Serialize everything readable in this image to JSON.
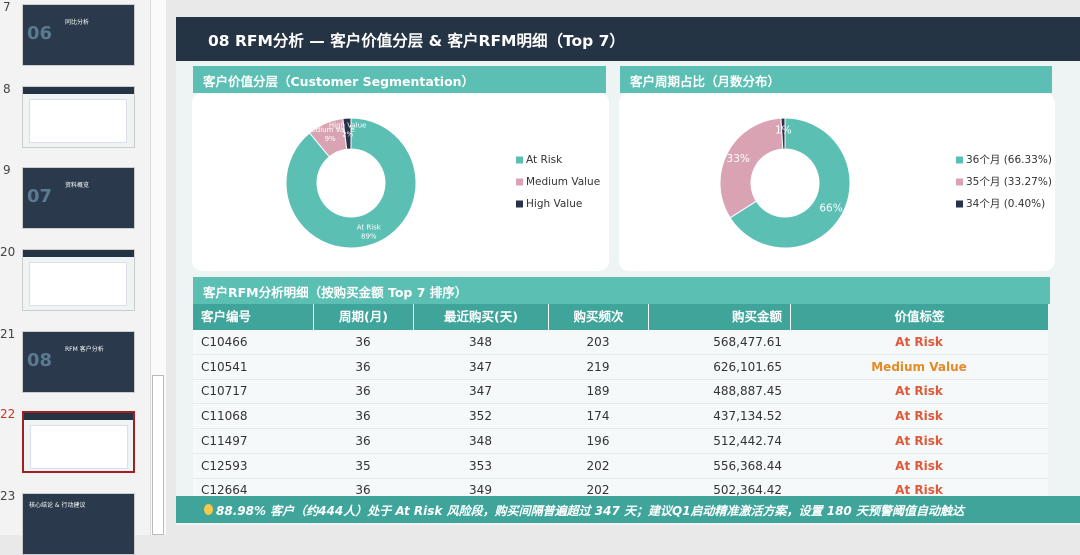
{
  "thumbnails": [
    {
      "number": "7",
      "big": "06",
      "title": "同比分析"
    },
    {
      "number": "8"
    },
    {
      "number": "9",
      "big": "07",
      "title": "资料概览"
    },
    {
      "number": "20"
    },
    {
      "number": "21",
      "big": "08",
      "title": "RFM 客户分析"
    },
    {
      "number": "22",
      "selected": true
    },
    {
      "number": "23",
      "title": "核心结论 & 行动建议"
    }
  ],
  "slide_title": "08  RFM分析 — 客户价值分层 & 客户RFM明细（Top 7）",
  "chart_data": [
    {
      "type": "donut",
      "title": "客户价值分层（Customer Segmentation）",
      "categories": [
        "At Risk",
        "Medium Value",
        "High Value"
      ],
      "values": [
        89,
        9,
        2
      ],
      "value_labels": [
        "89%",
        "9%",
        "2%"
      ],
      "colors": [
        "#5cbfb4",
        "#d9a3b3",
        "#26334a"
      ],
      "inner_labels": "name_and_value"
    },
    {
      "type": "donut",
      "title": "客户周期占比（月数分布）",
      "categories": [
        "36个月 (66.33%)",
        "35个月 (33.27%)",
        "34个月 (0.40%)"
      ],
      "values": [
        66,
        33,
        1
      ],
      "value_labels": [
        "66%",
        "33%",
        "1%"
      ],
      "colors": [
        "#5cbfb4",
        "#d9a3b3",
        "#26334a"
      ],
      "inner_labels": "value"
    }
  ],
  "table": {
    "title": "客户RFM分析明细（按购买金额 Top 7 排序）",
    "headers": [
      "客户编号",
      "周期(月)",
      "最近购买(天)",
      "购买频次",
      "购买金额",
      "价值标签"
    ],
    "rows": [
      [
        "C10466",
        "36",
        "348",
        "203",
        "568,477.61",
        "At Risk"
      ],
      [
        "C10541",
        "36",
        "347",
        "219",
        "626,101.65",
        "Medium Value"
      ],
      [
        "C10717",
        "36",
        "347",
        "189",
        "488,887.45",
        "At Risk"
      ],
      [
        "C11068",
        "36",
        "352",
        "174",
        "437,134.52",
        "At Risk"
      ],
      [
        "C11497",
        "36",
        "348",
        "196",
        "512,442.74",
        "At Risk"
      ],
      [
        "C12593",
        "35",
        "353",
        "202",
        "556,368.44",
        "At Risk"
      ],
      [
        "C12664",
        "36",
        "349",
        "202",
        "502,364.42",
        "At Risk"
      ]
    ],
    "tag_colors": {
      "At Risk": "#e05a3a",
      "Medium Value": "#e58a25"
    }
  },
  "footer": "88.98% 客户（约444人）处于 At Risk 风险段，购买间隔普遍超过 347 天；建议Q1启动精准激活方案，设置 180 天预警阈值自动触达"
}
